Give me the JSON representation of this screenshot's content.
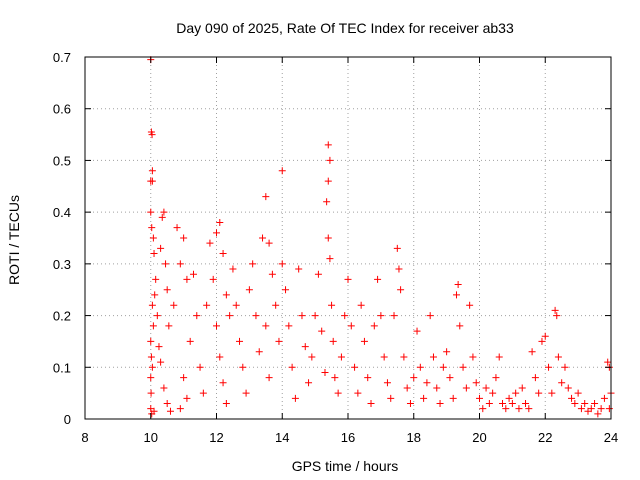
{
  "chart_data": {
    "type": "scatter",
    "title": "Day 090 of 2025, Rate Of TEC Index for receiver ab33",
    "xlabel": "GPS time / hours",
    "ylabel": "ROTI / TECUs",
    "xlim": [
      8,
      24
    ],
    "ylim": [
      0,
      0.7
    ],
    "x_ticks": [
      "8",
      "10",
      "12",
      "14",
      "16",
      "18",
      "20",
      "22",
      "24"
    ],
    "y_ticks": [
      "0",
      "0.1",
      "0.2",
      "0.3",
      "0.4",
      "0.5",
      "0.6",
      "0.7"
    ],
    "grid": true,
    "marker": "+",
    "color": "#ff0000",
    "series": [
      {
        "points": [
          [
            10.0,
            0.695
          ],
          [
            10.02,
            0.555
          ],
          [
            10.04,
            0.55
          ],
          [
            10.05,
            0.48
          ],
          [
            10.0,
            0.46
          ],
          [
            10.05,
            0.46
          ],
          [
            10.0,
            0.4
          ],
          [
            10.03,
            0.37
          ],
          [
            10.08,
            0.35
          ],
          [
            10.1,
            0.32
          ],
          [
            10.15,
            0.27
          ],
          [
            10.05,
            0.22
          ],
          [
            10.0,
            0.15
          ],
          [
            10.02,
            0.12
          ],
          [
            10.0,
            0.08
          ],
          [
            10.01,
            0.05
          ],
          [
            10.0,
            0.02
          ],
          [
            10.03,
            0.01
          ],
          [
            10.1,
            0.015
          ],
          [
            10.05,
            0.1
          ],
          [
            10.08,
            0.18
          ],
          [
            10.12,
            0.24
          ],
          [
            10.2,
            0.2
          ],
          [
            10.25,
            0.14
          ],
          [
            10.3,
            0.33
          ],
          [
            10.35,
            0.39
          ],
          [
            10.4,
            0.4
          ],
          [
            10.45,
            0.3
          ],
          [
            10.5,
            0.25
          ],
          [
            10.55,
            0.18
          ],
          [
            10.3,
            0.11
          ],
          [
            10.4,
            0.06
          ],
          [
            10.5,
            0.03
          ],
          [
            10.6,
            0.015
          ],
          [
            10.7,
            0.22
          ],
          [
            10.8,
            0.37
          ],
          [
            10.9,
            0.3
          ],
          [
            11.0,
            0.35
          ],
          [
            11.1,
            0.27
          ],
          [
            11.2,
            0.15
          ],
          [
            11.0,
            0.08
          ],
          [
            11.1,
            0.04
          ],
          [
            10.9,
            0.02
          ],
          [
            11.3,
            0.28
          ],
          [
            11.4,
            0.2
          ],
          [
            11.5,
            0.1
          ],
          [
            11.6,
            0.05
          ],
          [
            11.7,
            0.22
          ],
          [
            11.8,
            0.34
          ],
          [
            11.9,
            0.27
          ],
          [
            12.0,
            0.36
          ],
          [
            12.1,
            0.38
          ],
          [
            12.2,
            0.32
          ],
          [
            12.3,
            0.24
          ],
          [
            12.0,
            0.18
          ],
          [
            12.1,
            0.12
          ],
          [
            12.2,
            0.07
          ],
          [
            12.3,
            0.03
          ],
          [
            12.4,
            0.2
          ],
          [
            12.5,
            0.29
          ],
          [
            12.6,
            0.22
          ],
          [
            12.7,
            0.15
          ],
          [
            12.8,
            0.1
          ],
          [
            12.9,
            0.05
          ],
          [
            13.0,
            0.25
          ],
          [
            13.1,
            0.3
          ],
          [
            13.2,
            0.2
          ],
          [
            13.3,
            0.13
          ],
          [
            13.4,
            0.35
          ],
          [
            13.5,
            0.43
          ],
          [
            13.6,
            0.34
          ],
          [
            13.7,
            0.28
          ],
          [
            13.5,
            0.18
          ],
          [
            13.6,
            0.08
          ],
          [
            13.8,
            0.22
          ],
          [
            13.9,
            0.15
          ],
          [
            14.0,
            0.48
          ],
          [
            14.0,
            0.3
          ],
          [
            14.1,
            0.25
          ],
          [
            14.2,
            0.18
          ],
          [
            14.3,
            0.1
          ],
          [
            14.4,
            0.04
          ],
          [
            14.5,
            0.29
          ],
          [
            14.6,
            0.2
          ],
          [
            14.7,
            0.14
          ],
          [
            14.8,
            0.07
          ],
          [
            14.9,
            0.12
          ],
          [
            15.0,
            0.2
          ],
          [
            15.1,
            0.28
          ],
          [
            15.2,
            0.17
          ],
          [
            15.3,
            0.09
          ],
          [
            15.4,
            0.53
          ],
          [
            15.45,
            0.5
          ],
          [
            15.4,
            0.46
          ],
          [
            15.35,
            0.42
          ],
          [
            15.4,
            0.35
          ],
          [
            15.45,
            0.31
          ],
          [
            15.5,
            0.22
          ],
          [
            15.55,
            0.15
          ],
          [
            15.6,
            0.08
          ],
          [
            15.7,
            0.05
          ],
          [
            15.8,
            0.12
          ],
          [
            15.9,
            0.2
          ],
          [
            16.0,
            0.27
          ],
          [
            16.1,
            0.18
          ],
          [
            16.2,
            0.1
          ],
          [
            16.3,
            0.05
          ],
          [
            16.4,
            0.22
          ],
          [
            16.5,
            0.15
          ],
          [
            16.6,
            0.08
          ],
          [
            16.7,
            0.03
          ],
          [
            16.8,
            0.18
          ],
          [
            16.9,
            0.27
          ],
          [
            17.0,
            0.2
          ],
          [
            17.1,
            0.12
          ],
          [
            17.2,
            0.07
          ],
          [
            17.3,
            0.04
          ],
          [
            17.4,
            0.2
          ],
          [
            17.5,
            0.33
          ],
          [
            17.55,
            0.29
          ],
          [
            17.6,
            0.25
          ],
          [
            17.7,
            0.12
          ],
          [
            17.8,
            0.06
          ],
          [
            17.9,
            0.03
          ],
          [
            18.0,
            0.08
          ],
          [
            18.1,
            0.17
          ],
          [
            18.2,
            0.1
          ],
          [
            18.3,
            0.04
          ],
          [
            18.4,
            0.07
          ],
          [
            18.5,
            0.2
          ],
          [
            18.6,
            0.12
          ],
          [
            18.7,
            0.06
          ],
          [
            18.8,
            0.03
          ],
          [
            18.9,
            0.1
          ],
          [
            19.0,
            0.13
          ],
          [
            19.1,
            0.08
          ],
          [
            19.2,
            0.04
          ],
          [
            19.3,
            0.24
          ],
          [
            19.35,
            0.26
          ],
          [
            19.4,
            0.18
          ],
          [
            19.5,
            0.1
          ],
          [
            19.6,
            0.06
          ],
          [
            19.7,
            0.22
          ],
          [
            19.8,
            0.12
          ],
          [
            19.9,
            0.07
          ],
          [
            20.0,
            0.04
          ],
          [
            20.1,
            0.02
          ],
          [
            20.2,
            0.06
          ],
          [
            20.3,
            0.03
          ],
          [
            20.4,
            0.05
          ],
          [
            20.5,
            0.08
          ],
          [
            20.6,
            0.12
          ],
          [
            20.7,
            0.03
          ],
          [
            20.8,
            0.02
          ],
          [
            20.9,
            0.04
          ],
          [
            21.0,
            0.03
          ],
          [
            21.1,
            0.05
          ],
          [
            21.2,
            0.02
          ],
          [
            21.3,
            0.06
          ],
          [
            21.4,
            0.03
          ],
          [
            21.5,
            0.02
          ],
          [
            21.6,
            0.13
          ],
          [
            21.7,
            0.08
          ],
          [
            21.8,
            0.05
          ],
          [
            21.9,
            0.15
          ],
          [
            22.0,
            0.16
          ],
          [
            22.1,
            0.1
          ],
          [
            22.2,
            0.05
          ],
          [
            22.3,
            0.21
          ],
          [
            22.35,
            0.2
          ],
          [
            22.4,
            0.12
          ],
          [
            22.5,
            0.07
          ],
          [
            22.6,
            0.1
          ],
          [
            22.7,
            0.06
          ],
          [
            22.8,
            0.04
          ],
          [
            22.9,
            0.03
          ],
          [
            23.0,
            0.05
          ],
          [
            23.1,
            0.02
          ],
          [
            23.2,
            0.03
          ],
          [
            23.3,
            0.015
          ],
          [
            23.4,
            0.02
          ],
          [
            23.5,
            0.03
          ],
          [
            23.6,
            0.01
          ],
          [
            23.7,
            0.02
          ],
          [
            23.8,
            0.04
          ],
          [
            23.9,
            0.11
          ],
          [
            23.95,
            0.1
          ],
          [
            24.0,
            0.05
          ],
          [
            23.95,
            0.02
          ]
        ]
      }
    ]
  }
}
